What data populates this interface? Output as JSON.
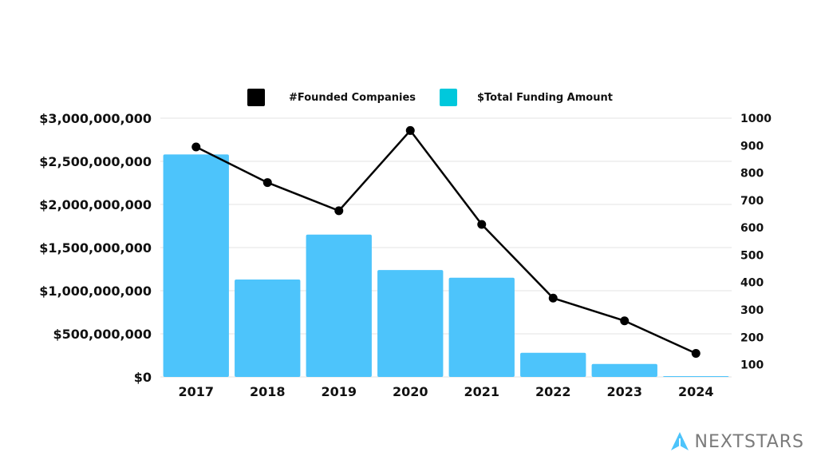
{
  "chart_data": {
    "type": "bar",
    "categories": [
      "2017",
      "2018",
      "2019",
      "2020",
      "2021",
      "2022",
      "2023",
      "2024"
    ],
    "series": [
      {
        "name": "$Total Funding Amount",
        "type": "bar",
        "axis": "left",
        "color": "#4dc4fb",
        "values": [
          2580000000,
          1130000000,
          1650000000,
          1240000000,
          1150000000,
          280000000,
          150000000,
          5000000
        ]
      },
      {
        "name": "#Founded Companies",
        "type": "line",
        "axis": "right",
        "color": "#000000",
        "values": [
          895,
          765,
          662,
          955,
          612,
          343,
          260,
          141
        ]
      }
    ],
    "left_axis": {
      "ylim": [
        0,
        3000000000
      ],
      "ticks": [
        0,
        500000000,
        1000000000,
        1500000000,
        2000000000,
        2500000000,
        3000000000
      ],
      "tick_labels": [
        "$0",
        "$500,000,000",
        "$1,000,000,000",
        "$1,500,000,000",
        "$2,000,000,000",
        "$2,500,000,000",
        "$3,000,000,000"
      ]
    },
    "right_axis": {
      "ylim": [
        55,
        1000
      ],
      "ticks": [
        100,
        200,
        300,
        400,
        500,
        600,
        700,
        800,
        900,
        1000
      ],
      "tick_labels": [
        "100",
        "200",
        "300",
        "400",
        "500",
        "600",
        "700",
        "800",
        "900",
        "1000"
      ]
    },
    "grid": true,
    "legend": {
      "position": "top-center",
      "items": [
        {
          "label": "#Founded Companies",
          "color": "#000000"
        },
        {
          "label": "$Total Funding Amount",
          "color": "#00c8dc"
        }
      ]
    }
  },
  "brand": {
    "name": "NEXTSTARS",
    "icon": "rocket-arrow-icon",
    "color": "#4dc4fb"
  }
}
